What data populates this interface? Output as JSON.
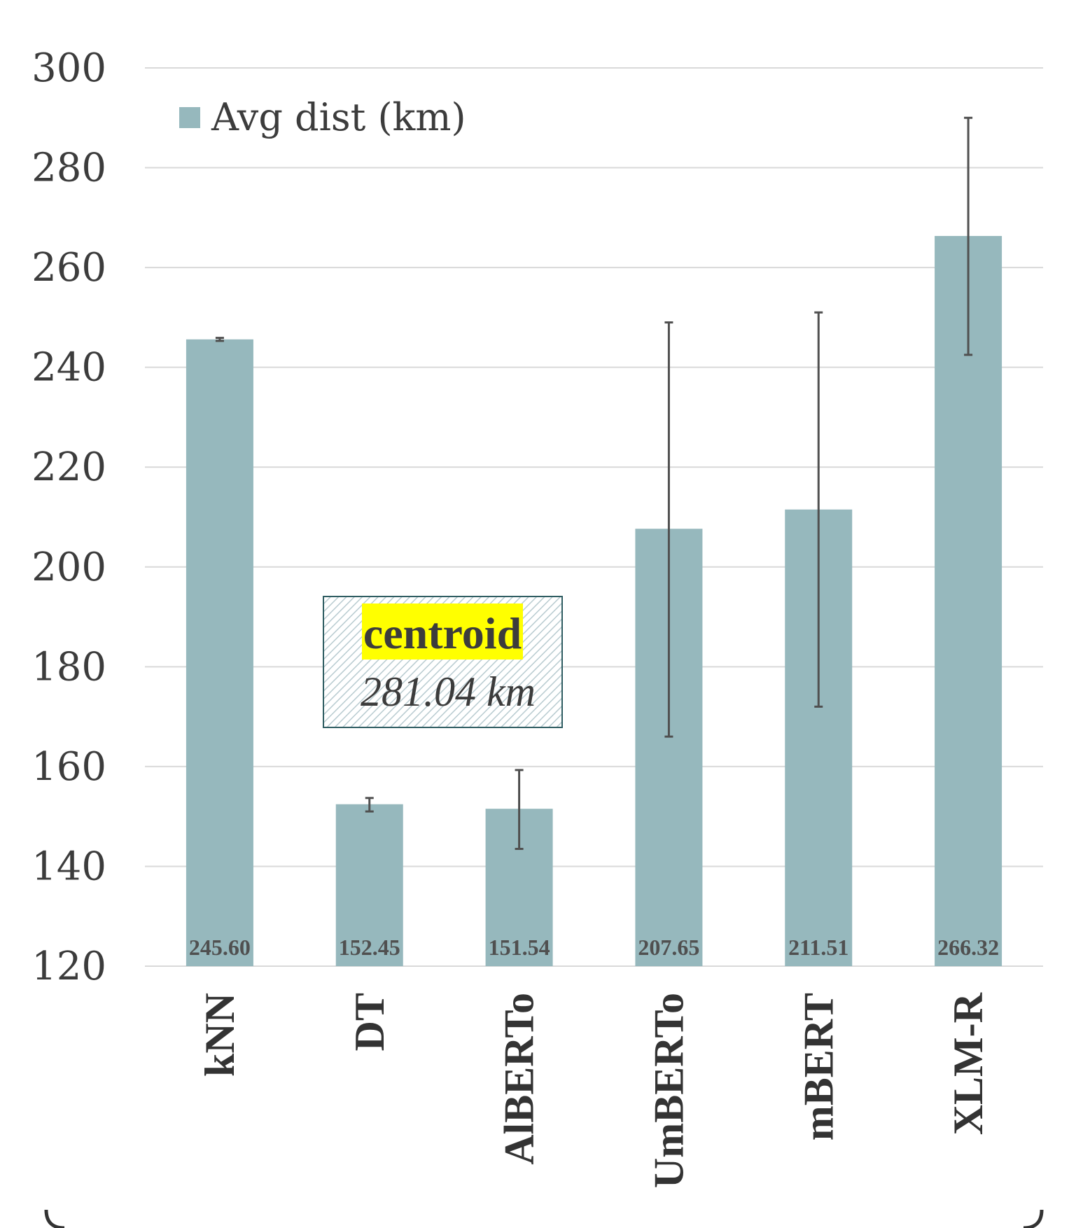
{
  "chart_data": {
    "type": "bar",
    "categories": [
      "kNN",
      "DT",
      "AlBERTo",
      "UmBERTo",
      "mBERT",
      "XLM-R"
    ],
    "series": [
      {
        "name": "Avg dist (km)",
        "values": [
          245.6,
          152.45,
          151.54,
          207.65,
          211.51,
          266.32
        ],
        "labels": [
          "245.60",
          "152.45",
          "151.54",
          "207.65",
          "211.51",
          "266.32"
        ],
        "error_low": [
          245.3,
          151.0,
          143.5,
          166.0,
          172.0,
          242.5
        ],
        "error_high": [
          245.9,
          153.7,
          159.3,
          249.0,
          251.0,
          290.0
        ]
      }
    ],
    "ylim": [
      120,
      300
    ],
    "yticks": [
      "120",
      "140",
      "160",
      "180",
      "200",
      "220",
      "240",
      "260",
      "280",
      "300"
    ],
    "grid": true,
    "legend_position": "top-left",
    "annotation": {
      "title": "centroid",
      "subtitle": "281.04 km"
    }
  },
  "colors": {
    "bar": "#96b8bd",
    "error_bar": "#505050",
    "grid": "#d9d9d9",
    "highlight": "#ffff00",
    "annotation_border": "#2f5d62"
  }
}
